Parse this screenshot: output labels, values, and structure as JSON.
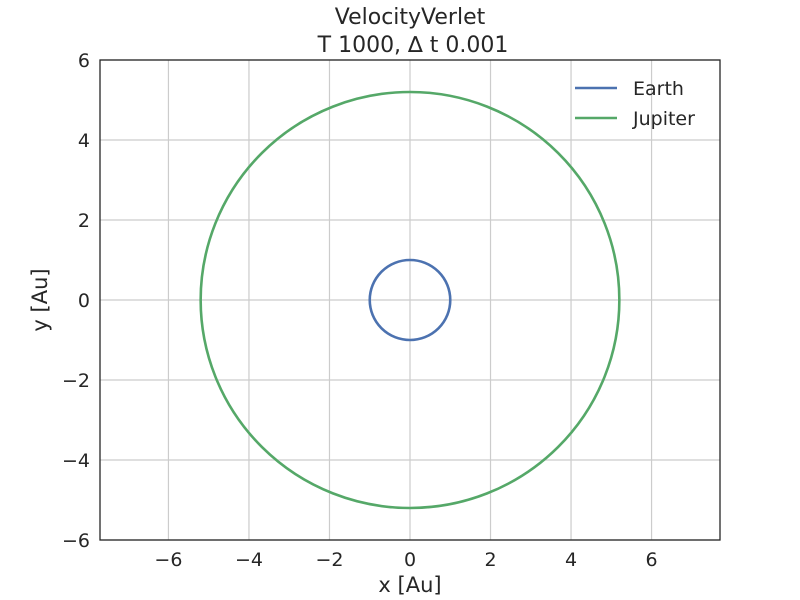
{
  "chart_data": {
    "type": "line",
    "title": "VelocityVerlet",
    "subtitle": "T 1000, ∆ t 0.001",
    "xlabel": "x [Au]",
    "ylabel": "y [Au]",
    "xlim": [
      -7.7,
      7.7
    ],
    "ylim": [
      -6,
      6
    ],
    "xticks": [
      -6,
      -4,
      -2,
      0,
      2,
      4,
      6
    ],
    "yticks": [
      -6,
      -4,
      -2,
      0,
      2,
      4,
      6
    ],
    "xtick_labels": [
      "−6",
      "−4",
      "−2",
      "0",
      "2",
      "4",
      "6"
    ],
    "ytick_labels": [
      "−6",
      "−4",
      "−2",
      "0",
      "2",
      "4",
      "6"
    ],
    "grid": true,
    "legend": "top-right",
    "series": [
      {
        "name": "Earth",
        "color": "#4c72b0",
        "shape": "circle",
        "center": [
          0,
          0
        ],
        "radius": 1.0
      },
      {
        "name": "Jupiter",
        "color": "#55a868",
        "shape": "circle",
        "center": [
          0,
          0
        ],
        "radius": 5.2
      }
    ]
  }
}
